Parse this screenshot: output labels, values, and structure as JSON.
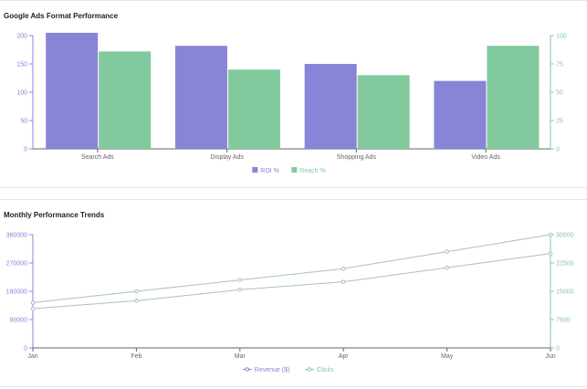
{
  "charts": [
    {
      "type": "bar",
      "title": "Google Ads Format Performance",
      "categories": [
        "Search Ads",
        "Display Ads",
        "Shopping Ads",
        "Video Ads"
      ],
      "series": [
        {
          "name": "ROI %",
          "axis": "left",
          "color": "#8884d8",
          "values": [
            205,
            182,
            150,
            120
          ]
        },
        {
          "name": "Reach %",
          "axis": "right",
          "color": "#82ca9d",
          "values": [
            86,
            70,
            65,
            91
          ]
        }
      ],
      "y_left": {
        "min": 0,
        "max": 200,
        "ticks": [
          "0",
          "50",
          "100",
          "150",
          "200"
        ],
        "color": "#8884d8"
      },
      "y_right": {
        "min": 0,
        "max": 100,
        "ticks": [
          "0",
          "25",
          "50",
          "75",
          "100"
        ],
        "color": "#82ca9d"
      },
      "legend_position": "bottom",
      "grid": false
    },
    {
      "type": "line",
      "title": "Monthly Performance Trends",
      "categories": [
        "Jan",
        "Feb",
        "Mar",
        "Apr",
        "May",
        "Jun"
      ],
      "series": [
        {
          "name": "Revenue ($)",
          "axis": "left",
          "color": "#8884d8",
          "values": [
            125000,
            150000,
            185000,
            210000,
            255000,
            300000
          ]
        },
        {
          "name": "Clicks",
          "axis": "right",
          "color": "#82ca9d",
          "values": [
            12000,
            15000,
            18000,
            21000,
            25500,
            30000
          ]
        }
      ],
      "y_left": {
        "min": 0,
        "max": 360000,
        "ticks": [
          "0",
          "90000",
          "180000",
          "270000",
          "360000"
        ],
        "color": "#8884d8"
      },
      "y_right": {
        "min": 0,
        "max": 30000,
        "ticks": [
          "0",
          "7500",
          "15000",
          "22500",
          "30000"
        ],
        "color": "#82ca9d"
      },
      "legend_position": "bottom",
      "grid": false
    }
  ],
  "axis_color": "#666666"
}
